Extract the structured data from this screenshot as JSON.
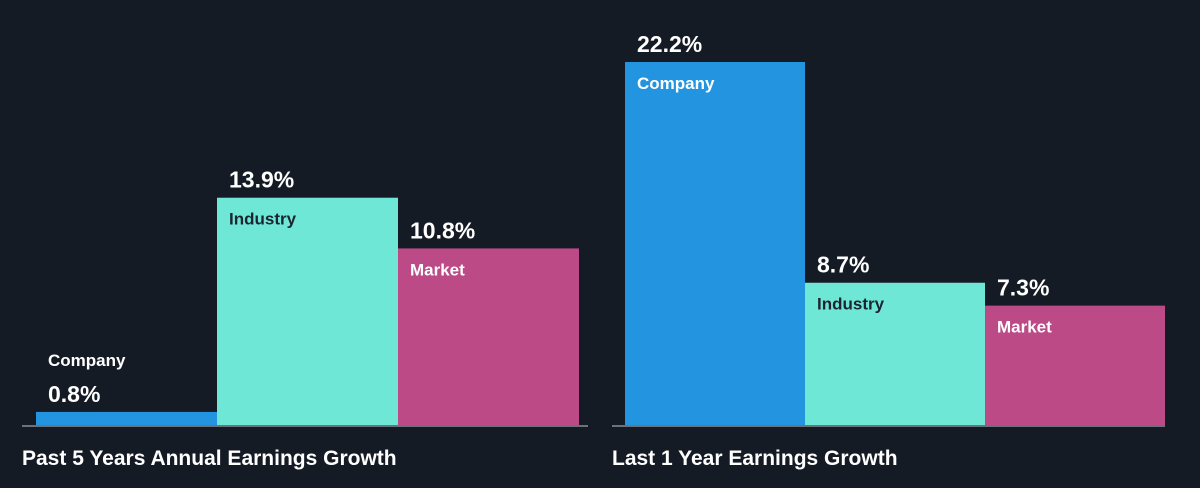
{
  "chart_data": [
    {
      "type": "bar",
      "title": "Past 5 Years Annual Earnings Growth",
      "categories": [
        "Company",
        "Industry",
        "Market"
      ],
      "values": [
        0.8,
        13.9,
        10.8
      ],
      "value_labels": [
        "0.8%",
        "13.9%",
        "10.8%"
      ],
      "unit": "%",
      "colors": [
        "#2394e0",
        "#6ee7d6",
        "#bc4a87"
      ],
      "label_colors": [
        "#ffffff",
        "#1b2430",
        "#ffffff"
      ],
      "ylim": [
        0,
        22.2
      ],
      "grid": false,
      "legend": "none"
    },
    {
      "type": "bar",
      "title": "Last 1 Year Earnings Growth",
      "categories": [
        "Company",
        "Industry",
        "Market"
      ],
      "values": [
        22.2,
        8.7,
        7.3
      ],
      "value_labels": [
        "22.2%",
        "8.7%",
        "7.3%"
      ],
      "unit": "%",
      "colors": [
        "#2394e0",
        "#6ee7d6",
        "#bc4a87"
      ],
      "label_colors": [
        "#ffffff",
        "#1b2430",
        "#ffffff"
      ],
      "ylim": [
        0,
        22.2
      ],
      "grid": false,
      "legend": "none"
    }
  ],
  "theme": {
    "background": "#151b24",
    "axis_line": "#8a9099",
    "text": "#ffffff"
  }
}
